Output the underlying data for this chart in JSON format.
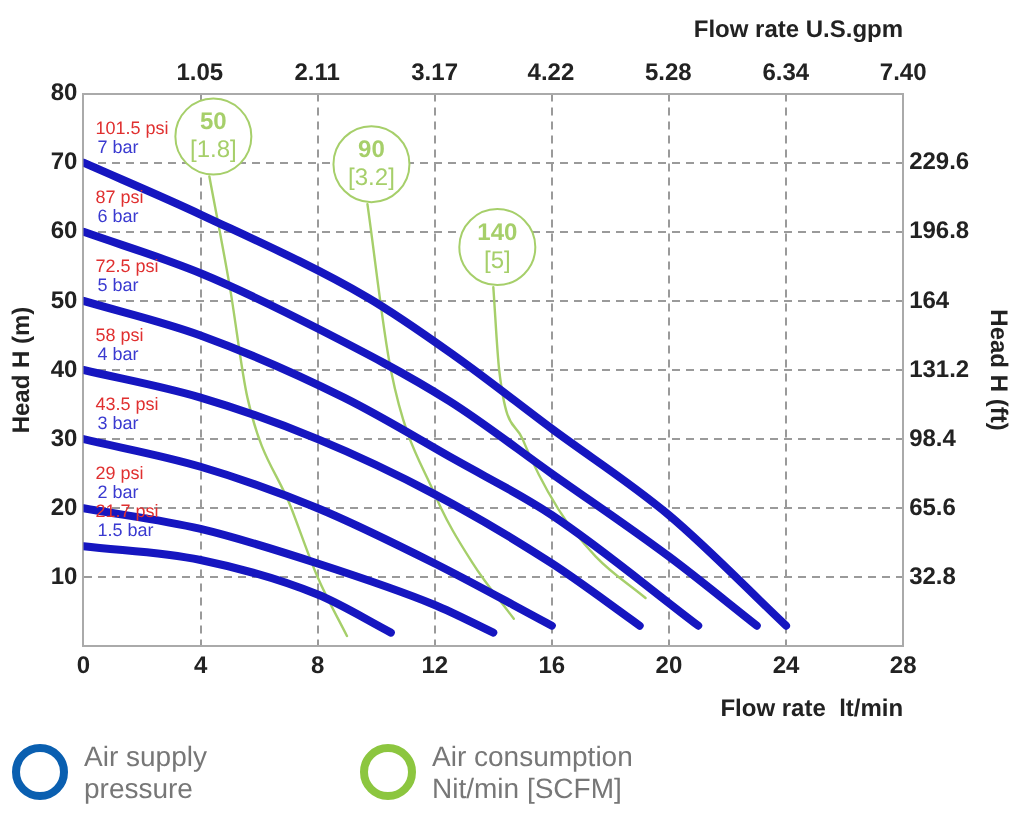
{
  "chart_data": {
    "type": "line",
    "xlabel": "Flow rate  lt/min",
    "x2label": "Flow rate U.S.gpm",
    "ylabel": "Head H (m)",
    "y2label": "Head H (ft)",
    "xlim": [
      0,
      28
    ],
    "xticks": [
      0,
      4,
      8,
      12,
      16,
      20,
      24,
      28
    ],
    "x2lim": [
      0,
      7.4
    ],
    "x2ticks": [
      1.05,
      2.11,
      3.17,
      4.22,
      5.28,
      6.34,
      {
        "value": 7.4,
        "label": "7.40"
      }
    ],
    "ylim": [
      0,
      80
    ],
    "yticks": [
      10,
      20,
      30,
      40,
      50,
      60,
      70,
      80
    ],
    "y2lim": [
      0,
      262.4
    ],
    "y2ticks": [
      32.8,
      65.6,
      98.4,
      131.2,
      164,
      196.8,
      229.6
    ],
    "grid": true,
    "series": [
      {
        "name": "7 bar",
        "color": "#1616c0",
        "x": [
          0,
          4,
          9.7,
          12.7,
          16,
          20,
          24
        ],
        "values": [
          70,
          62.5,
          50.5,
          42,
          31.5,
          19,
          3
        ]
      },
      {
        "name": "6 bar",
        "color": "#1616c0",
        "x": [
          0,
          4,
          8,
          12.5,
          16,
          20,
          23
        ],
        "values": [
          60,
          54,
          46,
          35.5,
          25,
          13,
          3
        ]
      },
      {
        "name": "5 bar",
        "color": "#1616c0",
        "x": [
          0,
          4,
          8.9,
          12.7,
          16,
          21
        ],
        "values": [
          50,
          45,
          36,
          27,
          19,
          3
        ]
      },
      {
        "name": "4 bar",
        "color": "#1616c0",
        "x": [
          0,
          4,
          8,
          12,
          16,
          19
        ],
        "values": [
          40,
          36,
          30,
          22,
          12,
          3
        ]
      },
      {
        "name": "3 bar",
        "color": "#1616c0",
        "x": [
          0,
          4,
          8,
          12,
          16
        ],
        "values": [
          30,
          26,
          20,
          12,
          3
        ]
      },
      {
        "name": "2 bar",
        "color": "#1616c0",
        "x": [
          0,
          4,
          8,
          12,
          14
        ],
        "values": [
          20,
          17,
          12,
          6,
          2
        ]
      },
      {
        "name": "1.5 bar",
        "color": "#1616c0",
        "x": [
          0,
          4,
          8,
          10.5
        ],
        "values": [
          14.5,
          12.5,
          7.5,
          2
        ]
      },
      {
        "name": "50 [1.8]",
        "color": "#a6cf6a",
        "x": [
          4.3,
          5,
          5.6,
          7.1,
          8,
          9
        ],
        "values": [
          68,
          52,
          36,
          20,
          10,
          1.5
        ]
      },
      {
        "name": "90 [3.2]",
        "color": "#a6cf6a",
        "x": [
          9.7,
          10.5,
          12,
          13.3,
          14.7
        ],
        "values": [
          64,
          40,
          22,
          12,
          4
        ]
      },
      {
        "name": "140 [5]",
        "color": "#a6cf6a",
        "x": [
          14,
          14.2,
          15,
          16.2,
          17.5,
          19.2
        ],
        "values": [
          52,
          40,
          30,
          20,
          13,
          7
        ]
      }
    ],
    "annotations": [
      "101.5 psi",
      "87 psi",
      "72.5 psi",
      "58 psi",
      "43.5 psi",
      "29 psi",
      "21.7 psi",
      "Air supply pressure",
      "Air consumption Nit/min [SCFM]"
    ]
  }
}
